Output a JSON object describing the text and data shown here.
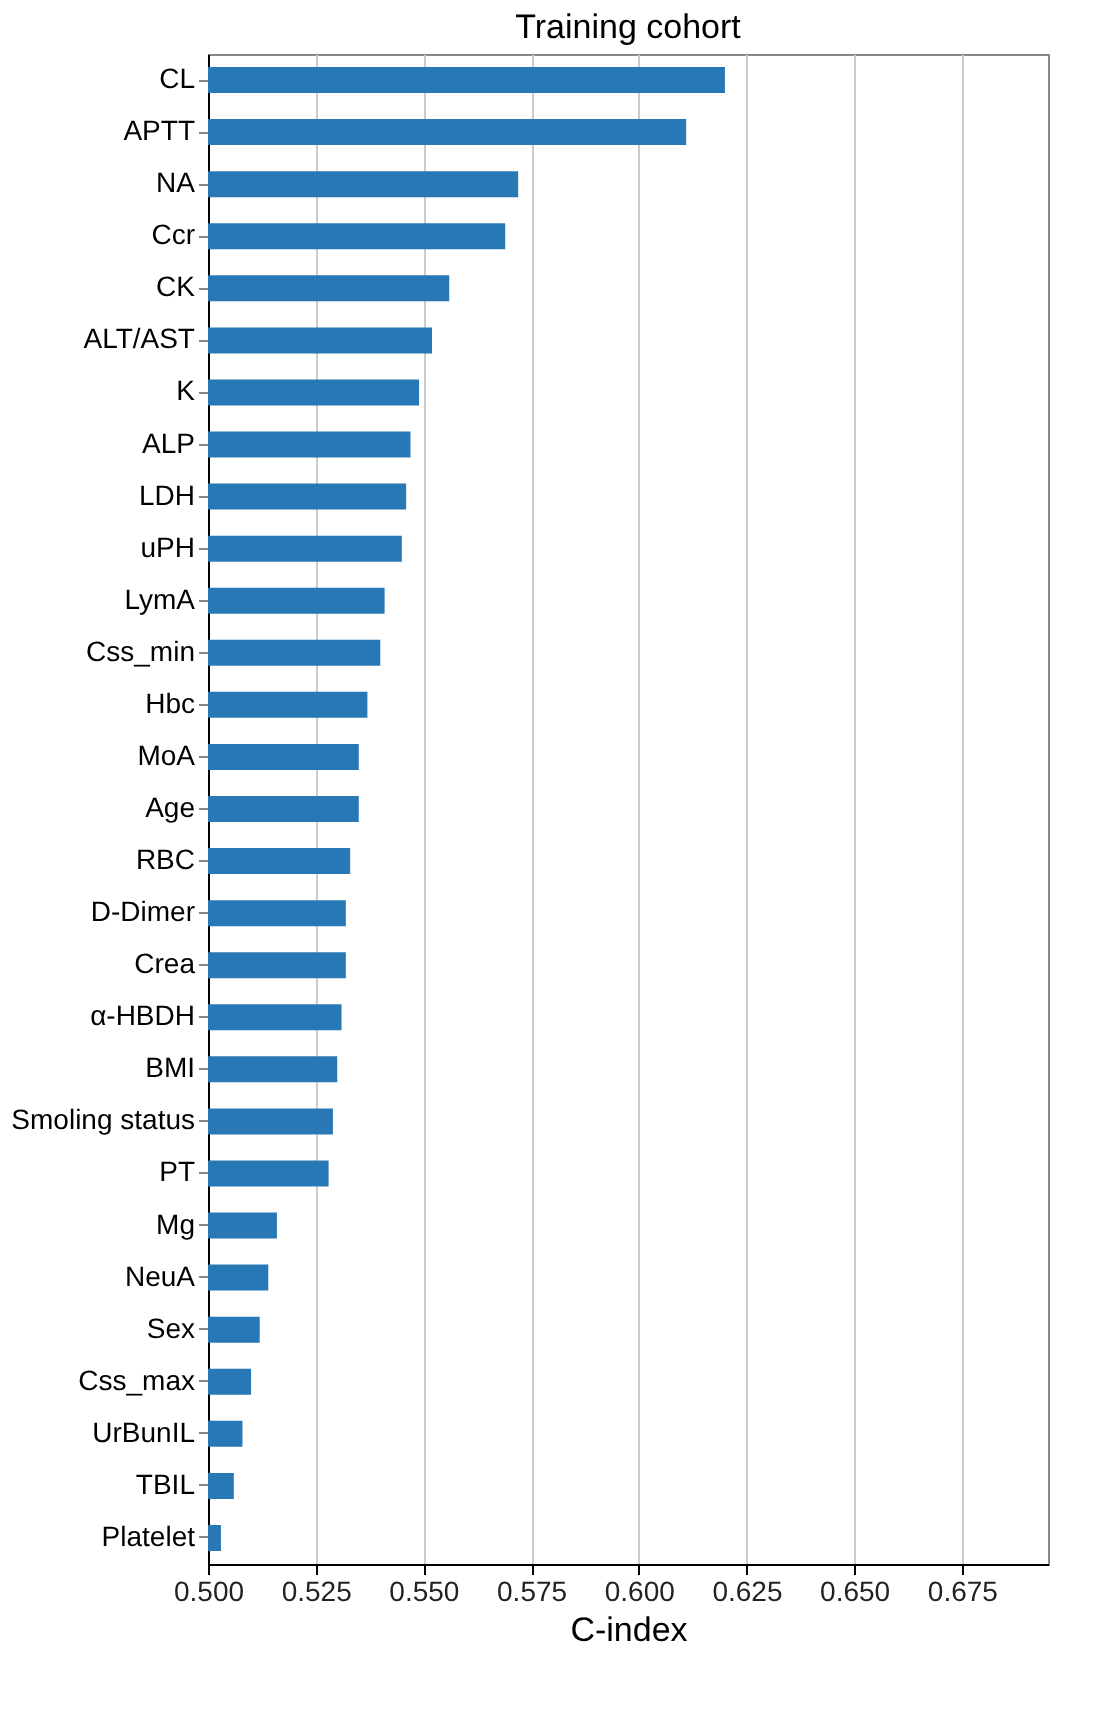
{
  "chart_data": {
    "type": "bar",
    "orientation": "horizontal",
    "title": "Training cohort",
    "xlabel": "C-index",
    "categories": [
      "CL",
      "APTT",
      "NA",
      "Ccr",
      "CK",
      "ALT/AST",
      "K",
      "ALP",
      "LDH",
      "uPH",
      "LymA",
      "Css_min",
      "Hbc",
      "MoA",
      "Age",
      "RBC",
      "D-Dimer",
      "Crea",
      "α-HBDH",
      "BMI",
      "Smoling status",
      "PT",
      "Mg",
      "NeuA",
      "Sex",
      "Css_max",
      "UrBunIL",
      "TBIL",
      "Platelet"
    ],
    "values": [
      0.62,
      0.611,
      0.572,
      0.569,
      0.556,
      0.552,
      0.549,
      0.547,
      0.546,
      0.545,
      0.541,
      0.54,
      0.537,
      0.535,
      0.535,
      0.533,
      0.532,
      0.532,
      0.531,
      0.53,
      0.529,
      0.528,
      0.516,
      0.514,
      0.512,
      0.51,
      0.508,
      0.506,
      0.503
    ],
    "color": "#2878b5",
    "xlim": [
      0.5,
      0.695
    ],
    "xticks": [
      {
        "value": 0.5,
        "label": "0.500"
      },
      {
        "value": 0.525,
        "label": "0.525"
      },
      {
        "value": 0.55,
        "label": "0.550"
      },
      {
        "value": 0.575,
        "label": "0.575"
      },
      {
        "value": 0.6,
        "label": "0.600"
      },
      {
        "value": 0.625,
        "label": "0.625"
      },
      {
        "value": 0.65,
        "label": "0.650"
      },
      {
        "value": 0.675,
        "label": "0.675"
      }
    ],
    "grid": "x"
  }
}
